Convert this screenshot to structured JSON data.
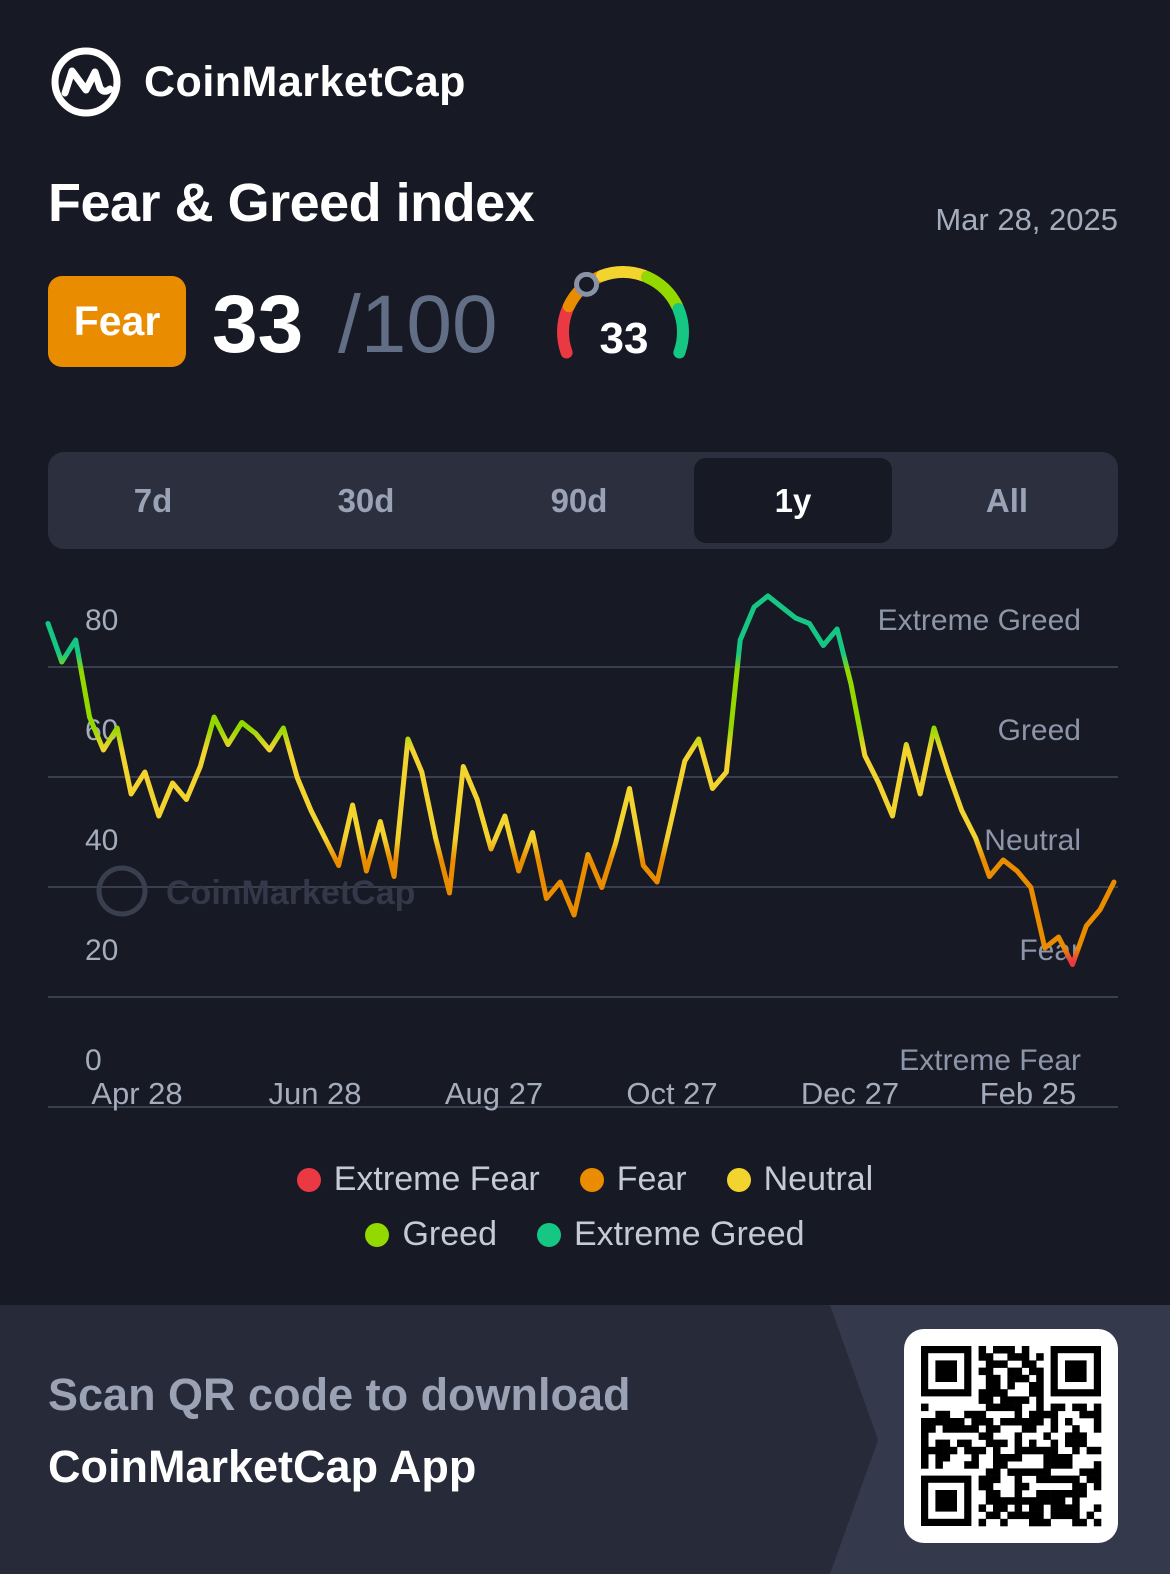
{
  "brand": {
    "name": "CoinMarketCap",
    "logo_icon": "coinmarketcap-logo-icon"
  },
  "header": {
    "title": "Fear & Greed index",
    "date": "Mar 28, 2025",
    "sentiment_badge": "Fear",
    "score": "33",
    "score_max": "/100",
    "gauge_value": "33",
    "gauge_fraction": 0.33
  },
  "tabs": [
    {
      "label": "7d",
      "active": false
    },
    {
      "label": "30d",
      "active": false
    },
    {
      "label": "90d",
      "active": false
    },
    {
      "label": "1y",
      "active": true
    },
    {
      "label": "All",
      "active": false
    }
  ],
  "chart_data": {
    "type": "line",
    "ylim": [
      0,
      80
    ],
    "yticks": [
      0,
      20,
      40,
      60,
      80
    ],
    "zones": [
      "Extreme Fear",
      "Fear",
      "Neutral",
      "Greed",
      "Extreme Greed"
    ],
    "xtick_labels": [
      "Apr 28",
      "Jun 28",
      "Aug 27",
      "Oct 27",
      "Dec 27",
      "Feb 25"
    ],
    "watermark": "CoinMarketCap",
    "grid": true,
    "series": [
      {
        "values": [
          79,
          72,
          76,
          62,
          56,
          60,
          48,
          52,
          44,
          50,
          47,
          53,
          62,
          57,
          61,
          59,
          56,
          60,
          51,
          45,
          40,
          35,
          46,
          34,
          43,
          33,
          58,
          52,
          40,
          30,
          53,
          47,
          38,
          44,
          34,
          41,
          29,
          32,
          26,
          37,
          31,
          39,
          49,
          35,
          32,
          43,
          54,
          58,
          49,
          52,
          76,
          82,
          84,
          82,
          80,
          79,
          75,
          78,
          68,
          55,
          50,
          44,
          57,
          48,
          60,
          52,
          45,
          40,
          33,
          36,
          34,
          31,
          20,
          22,
          17,
          24,
          27,
          32
        ]
      }
    ]
  },
  "legend": [
    {
      "label": "Extreme Fear",
      "color": "#ea3943"
    },
    {
      "label": "Fear",
      "color": "#ea8c00"
    },
    {
      "label": "Neutral",
      "color": "#f3d42f"
    },
    {
      "label": "Greed",
      "color": "#93d900"
    },
    {
      "label": "Extreme Greed",
      "color": "#16c784"
    }
  ],
  "footer": {
    "line1": "Scan QR code to download",
    "line2": "CoinMarketCap App",
    "qr_icon": "qr-code-icon"
  }
}
